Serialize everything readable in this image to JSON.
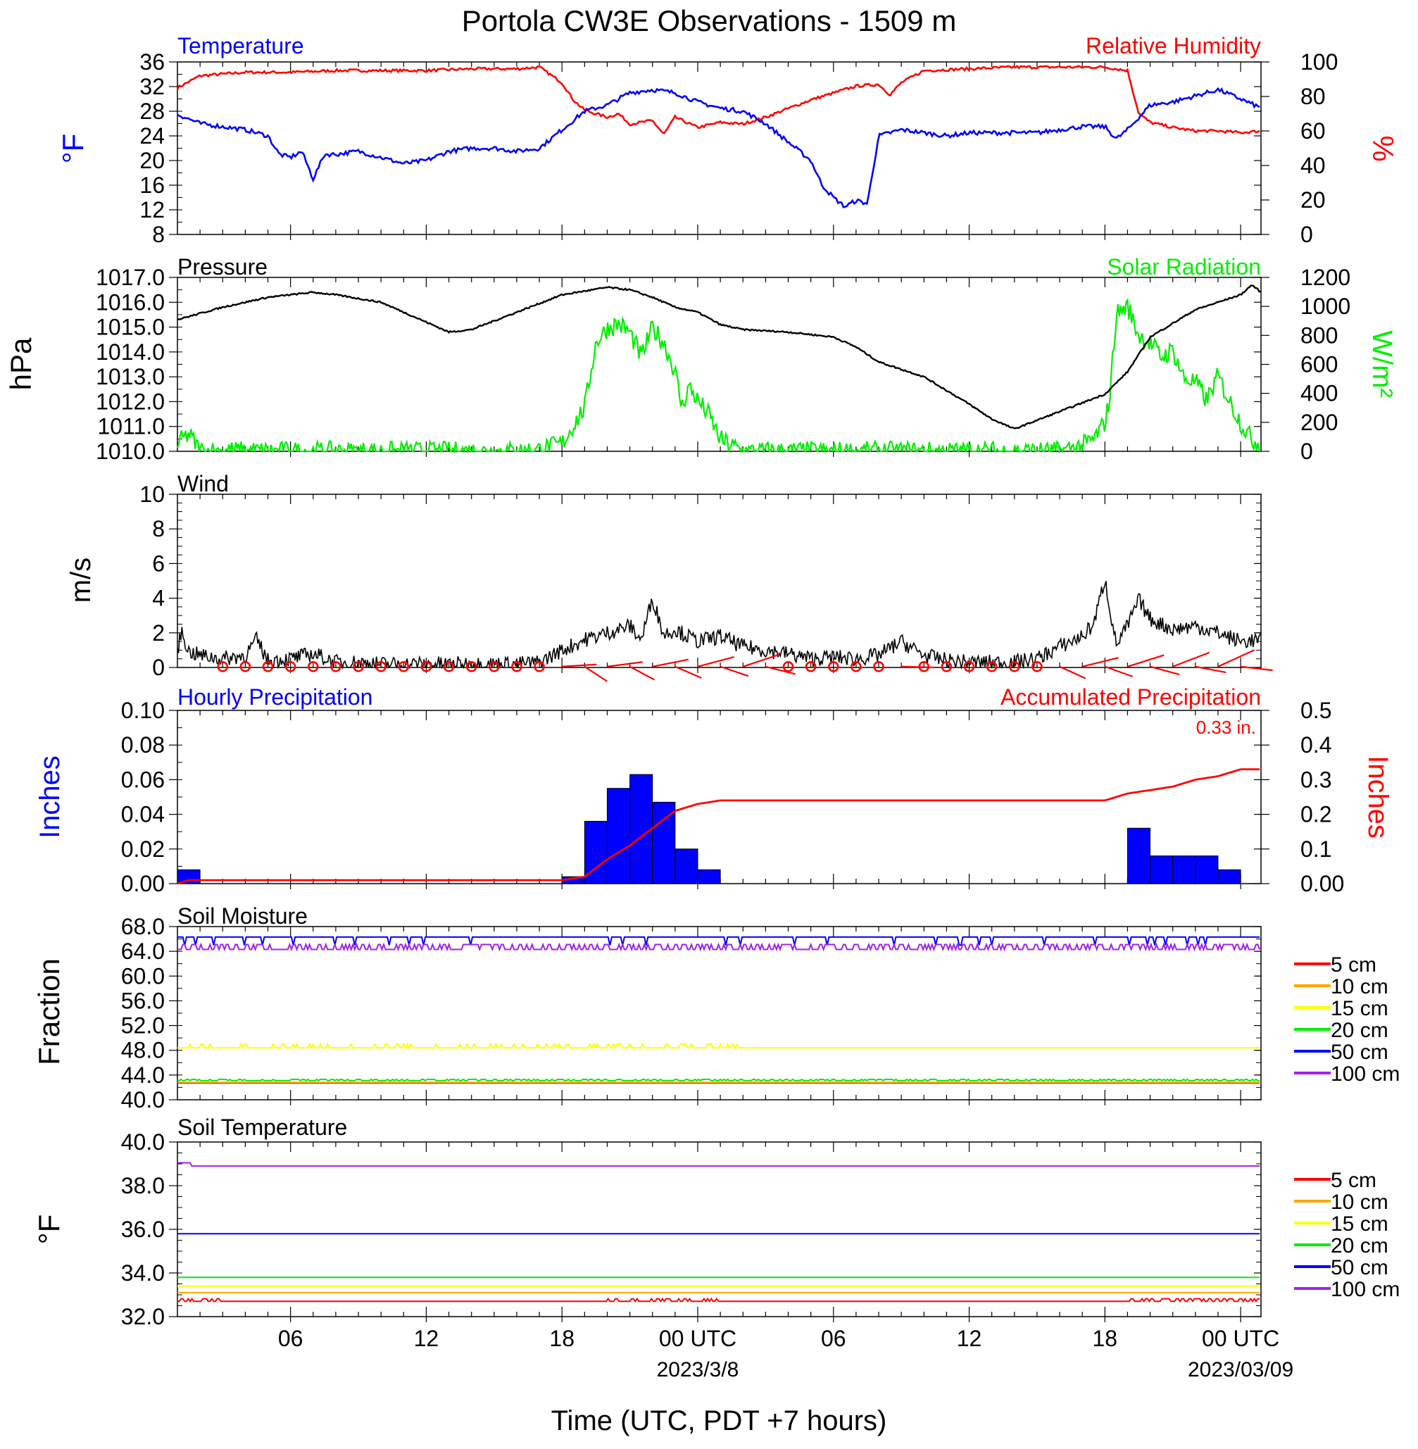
{
  "title": "Portola CW3E Observations - 1509 m",
  "xlabel": "Time (UTC, PDT +7 hours)",
  "x_ticks": [
    {
      "hour": 6,
      "label": "06"
    },
    {
      "hour": 12,
      "label": "12"
    },
    {
      "hour": 18,
      "label": "18"
    },
    {
      "hour": 24,
      "label": "00 UTC"
    },
    {
      "hour": 30,
      "label": "06"
    },
    {
      "hour": 36,
      "label": "12"
    },
    {
      "hour": 42,
      "label": "18"
    },
    {
      "hour": 48,
      "label": "00 UTC"
    }
  ],
  "date_labels": [
    {
      "hour": 24,
      "label": "2023/3/8"
    },
    {
      "hour": 48,
      "label": "2023/03/09"
    }
  ],
  "x_range_hours": [
    1,
    48.9
  ],
  "panels": {
    "temp_rh": {
      "left_label": "Temperature",
      "right_label": "Relative Humidity",
      "left_unit": "°F",
      "right_unit": "%",
      "left_color": "#0000ff",
      "right_color": "#ff0000",
      "left_ticks": [
        "8",
        "12",
        "16",
        "20",
        "24",
        "28",
        "32",
        "36"
      ],
      "right_ticks": [
        "0",
        "20",
        "40",
        "60",
        "80",
        "100"
      ]
    },
    "pressure_solar": {
      "left_label": "Pressure",
      "right_label": "Solar Radiation",
      "left_unit": "hPa",
      "right_unit": "W/m²",
      "left_color": "#000000",
      "right_color": "#00ee00",
      "left_ticks": [
        "1010.0",
        "1011.0",
        "1012.0",
        "1013.0",
        "1014.0",
        "1015.0",
        "1016.0",
        "1017.0"
      ],
      "right_ticks": [
        "0",
        "200",
        "400",
        "600",
        "800",
        "1000",
        "1200"
      ]
    },
    "wind": {
      "label": "Wind",
      "unit": "m/s",
      "ticks": [
        "0",
        "2",
        "4",
        "6",
        "8",
        "10"
      ],
      "barb_color": "#ff0000"
    },
    "precip": {
      "left_label": "Hourly Precipitation",
      "right_label": "Accumulated Precipitation",
      "left_unit": "Inches",
      "right_unit": "Inches",
      "total_label": "0.33 in.",
      "left_color": "#0000ff",
      "right_color": "#ff0000",
      "left_ticks": [
        "0.00",
        "0.02",
        "0.04",
        "0.06",
        "0.08",
        "0.10"
      ],
      "right_ticks": [
        "0.00",
        "0.1",
        "0.2",
        "0.3",
        "0.4",
        "0.5"
      ]
    },
    "soil_moisture": {
      "label": "Soil Moisture",
      "unit": "Fraction",
      "ticks": [
        "40.0",
        "44.0",
        "48.0",
        "52.0",
        "56.0",
        "60.0",
        "64.0",
        "68.0"
      ]
    },
    "soil_temp": {
      "label": "Soil Temperature",
      "unit": "°F",
      "ticks": [
        "32.0",
        "34.0",
        "36.0",
        "38.0",
        "40.0"
      ]
    }
  },
  "depth_legend": [
    {
      "label": "5 cm",
      "color": "#ff0000"
    },
    {
      "label": "10 cm",
      "color": "#ffa500"
    },
    {
      "label": "15 cm",
      "color": "#ffff00"
    },
    {
      "label": "20 cm",
      "color": "#00ee00"
    },
    {
      "label": "50 cm",
      "color": "#0000ff"
    },
    {
      "label": "100 cm",
      "color": "#a020f0"
    }
  ],
  "chart_data": [
    {
      "type": "line",
      "title": "Temperature / Relative Humidity",
      "x_unit": "hours since 2023-03-07 00 UTC",
      "ylim_left": [
        8,
        36
      ],
      "ylim_right": [
        0,
        100
      ],
      "series": [
        {
          "name": "Temperature",
          "axis": "left",
          "x": [
            1,
            2,
            3,
            4,
            5,
            5.5,
            6,
            6.5,
            7,
            7.5,
            8,
            9,
            10,
            11,
            12,
            13,
            14,
            15,
            16,
            17,
            18,
            19,
            20,
            21,
            22,
            23,
            24,
            25,
            26,
            27,
            28,
            29,
            29.5,
            30,
            30.5,
            31,
            31.5,
            32,
            33,
            34,
            35,
            36,
            37,
            38,
            39,
            40,
            41,
            42,
            42.5,
            43,
            44,
            45,
            46,
            47,
            48,
            48.9
          ],
          "y": [
            27.5,
            26,
            25.5,
            25,
            24,
            21,
            20.5,
            21.5,
            17,
            21,
            21,
            21.5,
            20.5,
            19.5,
            20,
            21.5,
            22,
            22,
            21.5,
            22,
            25,
            28,
            29,
            31,
            31.5,
            31,
            29.5,
            28.5,
            28,
            26,
            23,
            20,
            16,
            14,
            12.5,
            13.5,
            13,
            24,
            25,
            24.5,
            24,
            24.5,
            24.5,
            24.5,
            24.5,
            25,
            25.5,
            25.5,
            23.5,
            25,
            29,
            29.5,
            30.5,
            31.5,
            30,
            28.5
          ]
        },
        {
          "name": "Relative Humidity",
          "axis": "right",
          "x": [
            1,
            2,
            4,
            6,
            8,
            10,
            12,
            14,
            16,
            17,
            18,
            18.5,
            19,
            20,
            20.5,
            21,
            22,
            22.5,
            23,
            24,
            25,
            26,
            27,
            28,
            29,
            30,
            31,
            32,
            32.5,
            33,
            34,
            36,
            38,
            40,
            42,
            43,
            43.5,
            44,
            45,
            46,
            47,
            48,
            48.9
          ],
          "y": [
            85,
            92,
            94,
            94,
            95,
            95,
            95,
            96,
            96,
            97,
            88,
            78,
            72,
            68,
            70,
            64,
            66,
            58,
            68,
            62,
            65,
            64,
            68,
            73,
            78,
            82,
            86,
            87,
            81,
            88,
            95,
            96,
            97,
            97,
            97,
            95,
            70,
            65,
            62,
            60,
            60,
            59,
            60
          ]
        }
      ]
    },
    {
      "type": "line",
      "title": "Pressure / Solar Radiation",
      "x_unit": "hours since 2023-03-07 00 UTC",
      "ylim_left": [
        1010,
        1017
      ],
      "ylim_right": [
        0,
        1200
      ],
      "series": [
        {
          "name": "Pressure",
          "axis": "left",
          "x": [
            1,
            3,
            5,
            7,
            8,
            10,
            12,
            13,
            14,
            16,
            18,
            20,
            21,
            22,
            23,
            24,
            25,
            26,
            28,
            30,
            31,
            32,
            34,
            36,
            37,
            38,
            40,
            42,
            43,
            44,
            46,
            48,
            48.5,
            48.9
          ],
          "y": [
            1015.3,
            1015.8,
            1016.2,
            1016.4,
            1016.3,
            1016.0,
            1015.2,
            1014.8,
            1014.9,
            1015.6,
            1016.3,
            1016.6,
            1016.5,
            1016.2,
            1015.8,
            1015.6,
            1015.1,
            1014.9,
            1014.8,
            1014.6,
            1014.2,
            1013.6,
            1013.0,
            1011.9,
            1011.3,
            1010.9,
            1011.6,
            1012.3,
            1013.2,
            1014.6,
            1015.7,
            1016.3,
            1016.7,
            1016.4
          ]
        },
        {
          "name": "Solar Radiation",
          "axis": "right",
          "x": [
            1,
            1.5,
            2,
            6,
            10,
            14,
            16,
            17,
            18,
            18.5,
            19,
            19.5,
            20,
            20.5,
            21,
            21.5,
            22,
            22.5,
            23,
            23.3,
            23.6,
            24,
            24.5,
            25,
            26,
            30,
            34,
            38,
            40,
            41,
            41.5,
            42,
            42.2,
            42.5,
            43,
            43.5,
            44,
            44.5,
            45,
            45.5,
            46,
            46.5,
            47,
            47.5,
            48,
            48.5,
            48.9
          ],
          "y": [
            50,
            120,
            5,
            0,
            0,
            0,
            0,
            10,
            50,
            180,
            300,
            750,
            850,
            880,
            820,
            650,
            850,
            750,
            550,
            300,
            450,
            350,
            250,
            80,
            0,
            0,
            0,
            0,
            0,
            40,
            80,
            200,
            350,
            950,
            1000,
            800,
            750,
            650,
            700,
            500,
            480,
            350,
            520,
            350,
            200,
            80,
            50
          ]
        }
      ]
    },
    {
      "type": "line",
      "title": "Wind",
      "x_unit": "hours since 2023-03-07 00 UTC",
      "ylim": [
        0,
        10
      ],
      "series": [
        {
          "name": "Wind",
          "x": [
            1,
            1.2,
            1.5,
            2,
            3,
            4,
            4.5,
            5,
            6,
            7,
            8,
            9,
            10,
            11,
            12,
            13,
            14,
            15,
            16,
            17,
            18,
            19,
            20,
            21,
            21.5,
            22,
            22.5,
            23,
            24,
            25,
            26,
            27,
            28,
            29,
            30,
            31,
            32,
            33,
            34,
            35,
            36,
            37,
            38,
            39,
            40,
            41,
            41.5,
            42,
            42.5,
            43,
            43.5,
            44,
            45,
            46,
            47,
            48,
            48.9
          ],
          "y": [
            1.0,
            2.1,
            0.9,
            0.7,
            0.5,
            0.7,
            1.6,
            0.4,
            0.5,
            0.8,
            0.3,
            0.3,
            0.2,
            0.2,
            0.2,
            0.2,
            0.2,
            0.2,
            0.2,
            0.3,
            1.0,
            1.6,
            2.0,
            2.4,
            1.6,
            4.0,
            1.9,
            2.2,
            1.5,
            1.8,
            1.2,
            1.0,
            0.8,
            0.5,
            0.6,
            0.5,
            0.7,
            1.5,
            0.7,
            0.4,
            0.3,
            0.3,
            0.3,
            0.5,
            1.2,
            1.8,
            2.5,
            5.1,
            1.3,
            2.4,
            3.9,
            2.8,
            2.2,
            2.4,
            2.0,
            1.5,
            1.6
          ]
        }
      ]
    },
    {
      "type": "bar",
      "title": "Precipitation",
      "x_unit": "hours since 2023-03-07 00 UTC",
      "ylim_left": [
        0,
        0.1
      ],
      "ylim_right": [
        0,
        0.5
      ],
      "hourly": {
        "name": "Hourly Precipitation",
        "x": [
          1,
          18,
          19,
          20,
          21,
          22,
          23,
          24,
          43,
          44,
          45,
          46,
          47
        ],
        "y": [
          0.008,
          0.004,
          0.036,
          0.055,
          0.063,
          0.047,
          0.02,
          0.008,
          0.032,
          0.016,
          0.016,
          0.016,
          0.008
        ]
      },
      "accumulated": {
        "name": "Accumulated Precipitation",
        "x": [
          1,
          1.5,
          18,
          19,
          20,
          21,
          22,
          23,
          24,
          25,
          26,
          42,
          43,
          44,
          45,
          46,
          47,
          48,
          48.9
        ],
        "y": [
          0.0,
          0.01,
          0.01,
          0.02,
          0.07,
          0.11,
          0.16,
          0.21,
          0.23,
          0.24,
          0.24,
          0.24,
          0.26,
          0.27,
          0.28,
          0.3,
          0.31,
          0.33,
          0.33
        ]
      }
    },
    {
      "type": "line",
      "title": "Soil Moisture",
      "x_unit": "hours since 2023-03-07 00 UTC",
      "ylim": [
        40,
        68
      ],
      "series": [
        {
          "name": "5 cm",
          "value": 42.7
        },
        {
          "name": "10 cm",
          "value": 42.8
        },
        {
          "name": "15 cm",
          "value": 48.4
        },
        {
          "name": "20 cm",
          "value": 43.1
        },
        {
          "name": "50 cm",
          "value": 66.3
        },
        {
          "name": "100 cm",
          "value": 64.3
        }
      ]
    },
    {
      "type": "line",
      "title": "Soil Temperature",
      "x_unit": "hours since 2023-03-07 00 UTC",
      "ylim": [
        32,
        40
      ],
      "series": [
        {
          "name": "5 cm",
          "value": 32.7
        },
        {
          "name": "10 cm",
          "value": 33.1
        },
        {
          "name": "15 cm",
          "value": 33.4
        },
        {
          "name": "20 cm",
          "value": 33.8
        },
        {
          "name": "50 cm",
          "value": 35.8
        },
        {
          "name": "100 cm",
          "value": 38.9
        }
      ]
    }
  ]
}
